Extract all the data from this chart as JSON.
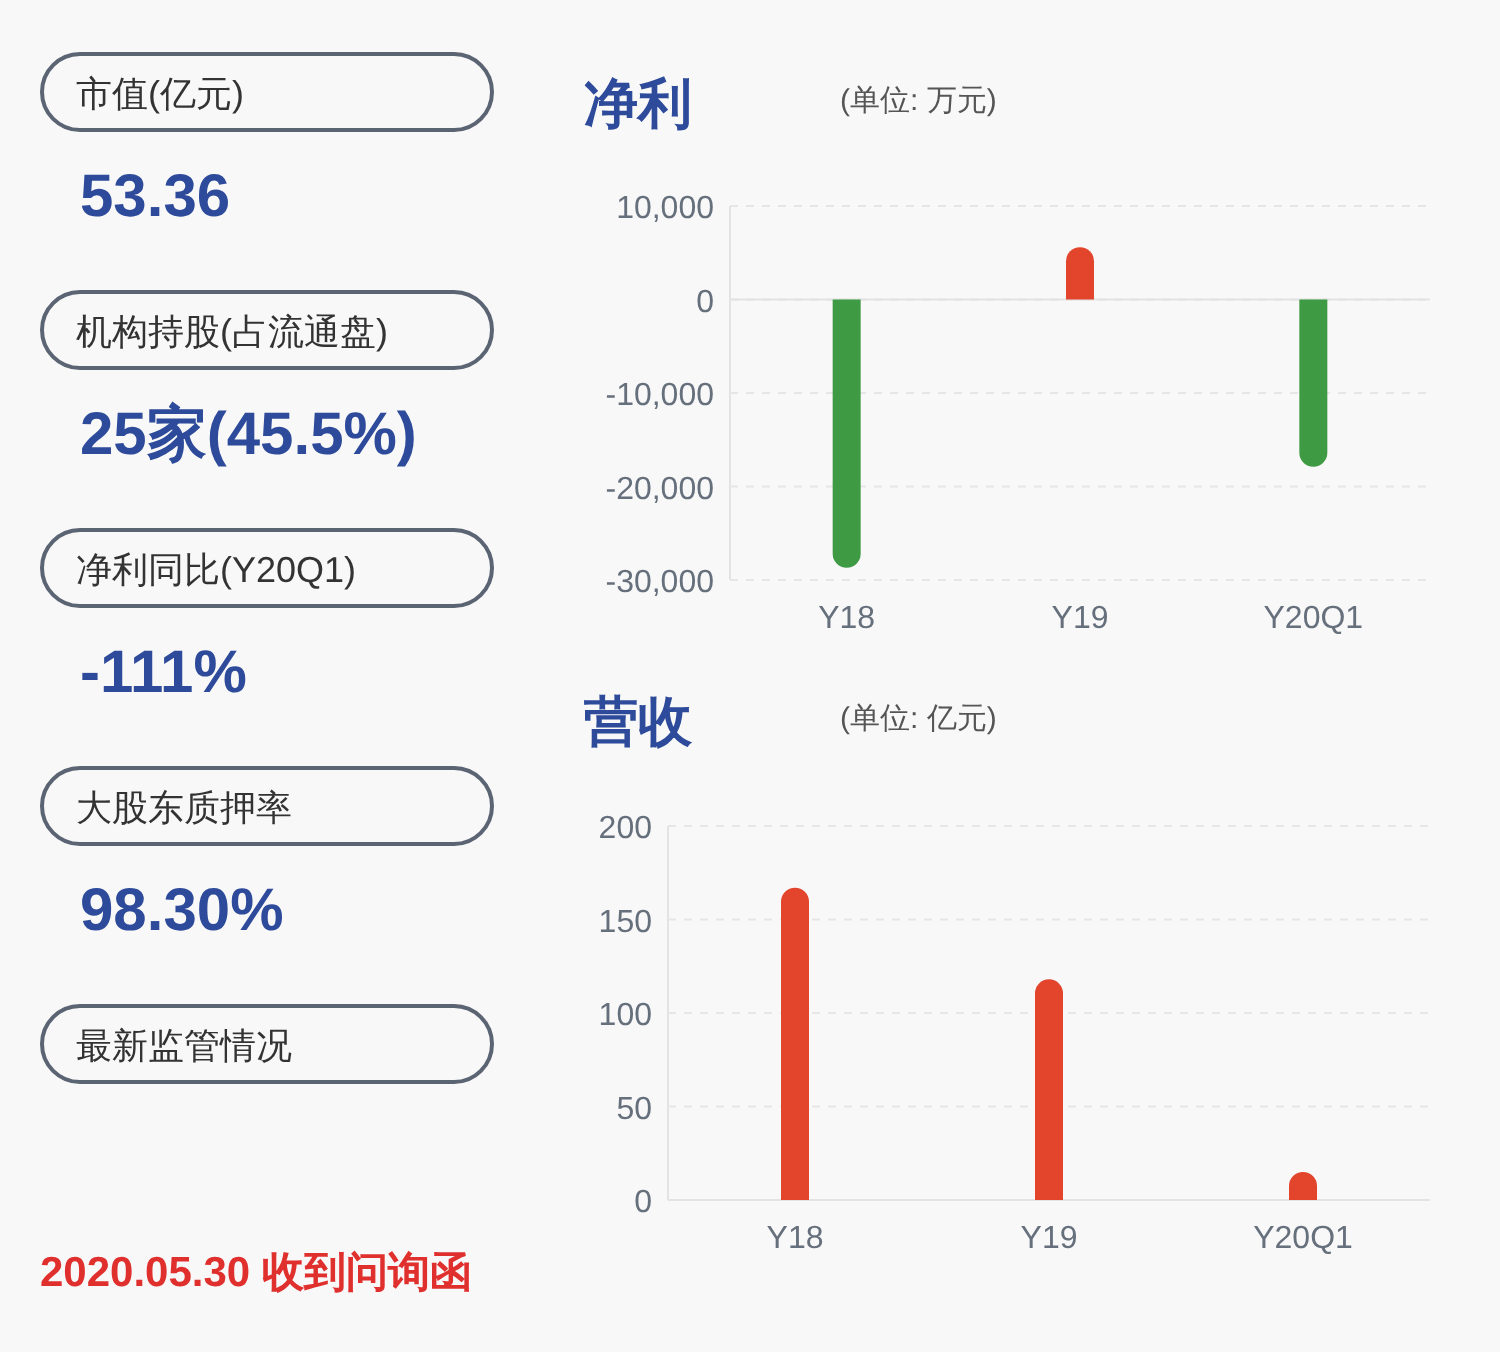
{
  "chart_data": [
    {
      "type": "other",
      "annotations": [
        "市值(亿元)",
        "53.36",
        "机构持股(占流通盘)",
        "25家(45.5%)",
        "净利同比(Y20Q1)",
        "-111%",
        "大股东质押率",
        "98.30%",
        "最新监管情况",
        "2020.05.30 收到问询函"
      ]
    },
    {
      "type": "bar",
      "title": "净利",
      "subtitle": "(单位: 万元)",
      "categories": [
        "Y18",
        "Y19",
        "Y20Q1"
      ],
      "values": [
        -28700,
        5600,
        -17900
      ],
      "colors": [
        "#3f9a44",
        "#e2452c",
        "#3f9a44"
      ],
      "ylim": [
        -30000,
        10000
      ],
      "yticks": [
        {
          "value": -30000,
          "label": "-30,000"
        },
        {
          "value": -20000,
          "label": "-20,000"
        },
        {
          "value": -10000,
          "label": "-10,000"
        },
        0,
        {
          "value": 10000,
          "label": "10,000"
        }
      ],
      "grid": "y"
    },
    {
      "type": "bar",
      "title": "营收",
      "subtitle": "(单位: 亿元)",
      "categories": [
        "Y18",
        "Y19",
        "Y20Q1"
      ],
      "values": [
        167,
        118,
        15
      ],
      "colors": [
        "#e2452c",
        "#e2452c",
        "#e2452c"
      ],
      "ylim": [
        0,
        200
      ],
      "yticks": [
        0,
        50,
        100,
        150,
        200
      ],
      "grid": "y"
    }
  ]
}
